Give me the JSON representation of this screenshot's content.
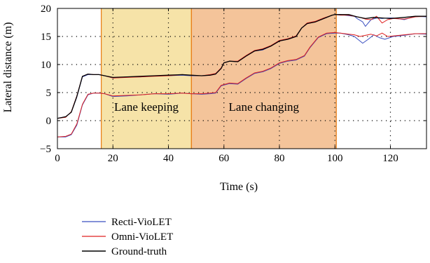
{
  "chart_data": {
    "type": "line",
    "xlabel": "Time (s)",
    "ylabel": "Lateral distance (m)",
    "xlim": [
      0,
      133
    ],
    "ylim": [
      -5,
      20
    ],
    "x_ticks": [
      0,
      20,
      40,
      60,
      80,
      100,
      120
    ],
    "y_ticks": [
      -5,
      0,
      5,
      10,
      15,
      20
    ],
    "grid": "dotted",
    "legend_position": "below",
    "regions": [
      {
        "label": "Lane keeping",
        "x_start": 15.8,
        "x_end": 48.3,
        "color": "#f6e3a8",
        "edge_color": "#e8801a"
      },
      {
        "label": "Lane changing",
        "x_start": 48.3,
        "x_end": 100.5,
        "color": "#f4c49a",
        "edge_color": "#e8801a"
      }
    ],
    "series": [
      {
        "name": "Recti-VioLET",
        "color": "#3a4fc0",
        "tracks": [
          {
            "x": [
              0,
              3,
              5,
              7,
              9,
              11,
              13,
              15,
              17,
              20,
              25,
              30,
              35,
              40,
              45,
              48,
              52,
              55,
              57,
              59,
              60,
              62,
              65,
              68,
              71,
              74,
              77,
              80,
              83,
              86,
              88,
              90,
              93,
              96,
              99,
              100,
              102,
              105,
              107,
              108,
              110,
              111,
              113,
              115,
              117,
              119,
              121,
              125,
              129,
              133
            ],
            "y": [
              0.4,
              0.7,
              1.5,
              4.2,
              7.8,
              8.2,
              8.2,
              8.2,
              8.0,
              7.6,
              7.8,
              7.8,
              8.0,
              8.0,
              8.1,
              8.0,
              8.0,
              8.1,
              8.3,
              9.3,
              10.3,
              10.6,
              10.5,
              11.5,
              12.4,
              12.6,
              13.3,
              14.2,
              14.5,
              15.0,
              16.5,
              17.3,
              17.6,
              18.2,
              18.8,
              18.9,
              18.9,
              18.7,
              18.6,
              18.2,
              17.6,
              16.8,
              18.0,
              18.3,
              18.2,
              18.3,
              18.3,
              18.0,
              18.6,
              18.5
            ]
          },
          {
            "x": [
              0,
              3,
              5,
              7,
              9,
              11,
              13,
              15,
              17,
              20,
              25,
              30,
              35,
              40,
              45,
              48,
              52,
              55,
              57,
              59,
              62,
              65,
              68,
              71,
              74,
              77,
              80,
              83,
              86,
              89,
              91,
              94,
              97,
              100,
              102,
              105,
              107,
              109,
              110,
              112,
              114,
              116,
              118,
              121,
              125,
              129,
              133
            ],
            "y": [
              -2.9,
              -2.9,
              -2.5,
              -0.8,
              2.8,
              4.6,
              4.9,
              4.9,
              4.8,
              4.3,
              4.4,
              4.6,
              4.8,
              4.7,
              4.9,
              4.8,
              4.7,
              4.8,
              4.9,
              6.2,
              6.6,
              6.5,
              7.5,
              8.4,
              8.7,
              9.3,
              10.2,
              10.6,
              10.8,
              11.5,
              13.0,
              14.8,
              15.5,
              15.6,
              15.6,
              15.3,
              15.0,
              14.2,
              13.8,
              14.5,
              15.3,
              14.8,
              14.5,
              15.0,
              15.2,
              15.5,
              15.4
            ]
          }
        ]
      },
      {
        "name": "Omni-VioLET",
        "color": "#e02020",
        "tracks": [
          {
            "x": [
              0,
              3,
              5,
              7,
              9,
              11,
              13,
              15,
              17,
              20,
              25,
              30,
              35,
              40,
              45,
              48,
              52,
              55,
              57,
              59,
              60,
              62,
              65,
              68,
              71,
              74,
              77,
              80,
              83,
              86,
              88,
              90,
              93,
              96,
              99,
              100,
              102,
              105,
              107,
              109,
              111,
              113,
              115,
              117,
              119,
              121,
              125,
              129,
              133
            ],
            "y": [
              0.4,
              0.6,
              1.6,
              4.4,
              7.9,
              8.3,
              8.2,
              8.2,
              8.0,
              7.6,
              7.7,
              7.8,
              7.9,
              8.0,
              8.2,
              8.1,
              8.0,
              8.2,
              8.4,
              9.4,
              10.3,
              10.6,
              10.6,
              11.6,
              12.5,
              12.8,
              13.4,
              14.3,
              14.6,
              15.1,
              16.5,
              17.4,
              17.7,
              18.3,
              18.8,
              18.9,
              18.8,
              18.8,
              18.6,
              18.4,
              18.1,
              18.0,
              18.6,
              17.4,
              18.0,
              18.2,
              18.1,
              18.5,
              18.6
            ]
          },
          {
            "x": [
              0,
              3,
              5,
              7,
              9,
              11,
              13,
              15,
              17,
              20,
              25,
              30,
              35,
              40,
              45,
              48,
              52,
              55,
              57,
              59,
              62,
              65,
              68,
              71,
              74,
              77,
              80,
              83,
              86,
              89,
              91,
              94,
              97,
              100,
              102,
              105,
              107,
              109,
              111,
              113,
              115,
              117,
              119,
              121,
              125,
              129,
              133
            ],
            "y": [
              -2.9,
              -2.8,
              -2.4,
              -0.6,
              2.9,
              4.7,
              4.9,
              4.9,
              4.8,
              4.4,
              4.5,
              4.6,
              4.8,
              4.8,
              4.9,
              4.8,
              4.8,
              4.9,
              5.0,
              6.3,
              6.7,
              6.6,
              7.6,
              8.5,
              8.8,
              9.4,
              10.3,
              10.7,
              10.9,
              11.6,
              13.1,
              14.9,
              15.6,
              15.7,
              15.6,
              15.4,
              15.3,
              15.0,
              15.2,
              15.4,
              15.1,
              15.6,
              15.0,
              15.1,
              15.3,
              15.5,
              15.5
            ]
          }
        ]
      },
      {
        "name": "Ground-truth",
        "color": "#000000",
        "tracks": [
          {
            "x": [
              0,
              3,
              5,
              7,
              9,
              11,
              13,
              15,
              17,
              20,
              25,
              30,
              35,
              40,
              45,
              48,
              52,
              55,
              57,
              59,
              60,
              62,
              65,
              68,
              71,
              74,
              77,
              80,
              83,
              86,
              88,
              90,
              93,
              96,
              99,
              100,
              102,
              105,
              108,
              111,
              114,
              117,
              120,
              125,
              129,
              133
            ],
            "y": [
              0.4,
              0.7,
              1.5,
              4.3,
              7.9,
              8.3,
              8.2,
              8.2,
              8.0,
              7.7,
              7.8,
              7.9,
              8.0,
              8.1,
              8.2,
              8.1,
              8.0,
              8.1,
              8.3,
              9.3,
              10.3,
              10.6,
              10.5,
              11.5,
              12.4,
              12.7,
              13.3,
              14.2,
              14.5,
              15.0,
              16.5,
              17.3,
              17.6,
              18.2,
              18.8,
              18.9,
              18.9,
              18.9,
              18.5,
              18.2,
              18.4,
              18.3,
              18.2,
              18.4,
              18.6,
              18.6
            ]
          }
        ]
      }
    ]
  }
}
